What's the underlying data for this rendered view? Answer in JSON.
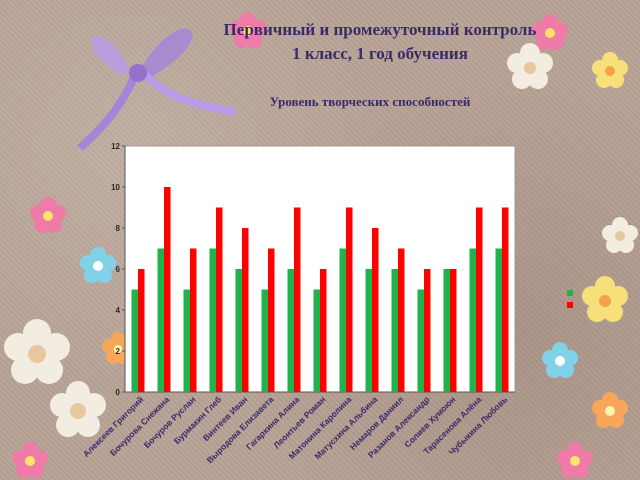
{
  "slide": {
    "title_line1": "Первичный и промежуточный контроль",
    "title_line2": "1 класс,  1 год обучения"
  },
  "chart_data": {
    "type": "bar",
    "title": "Уровень творческих способностей",
    "categories": [
      "Алексеев Григорий",
      "Бочурова Снежана",
      "Бочуров Руслан",
      "Бурмакин Глеб",
      "Винтеев Иван",
      "Выродова Елизавета",
      "Гагаркина Алина",
      "Леонтьев Роман",
      "Матонина Каролина",
      "Матусхина Альбина",
      "Немаров Даниил",
      "Разанов Александр",
      "Солиев Хумоюн",
      "Тарасенова Алёна",
      "Чубыкина Любовь"
    ],
    "series": [
      {
        "values": [
          5,
          7,
          5,
          7,
          6,
          5,
          6,
          5,
          7,
          6,
          6,
          5,
          6,
          7,
          7
        ],
        "color": "#21b24b"
      },
      {
        "values": [
          6,
          10,
          7,
          9,
          8,
          7,
          9,
          6,
          9,
          8,
          7,
          6,
          6,
          9,
          9
        ],
        "color": "#ff0000"
      }
    ],
    "ylim": [
      0,
      12
    ],
    "yticks": [
      "0",
      "2",
      "4",
      "6",
      "8",
      "10",
      "12"
    ],
    "grid": false,
    "legend": "right"
  },
  "colors": {
    "title": "#3a2a6a",
    "ribbon": "#a585d8",
    "plot_bg": "#ffffff"
  }
}
